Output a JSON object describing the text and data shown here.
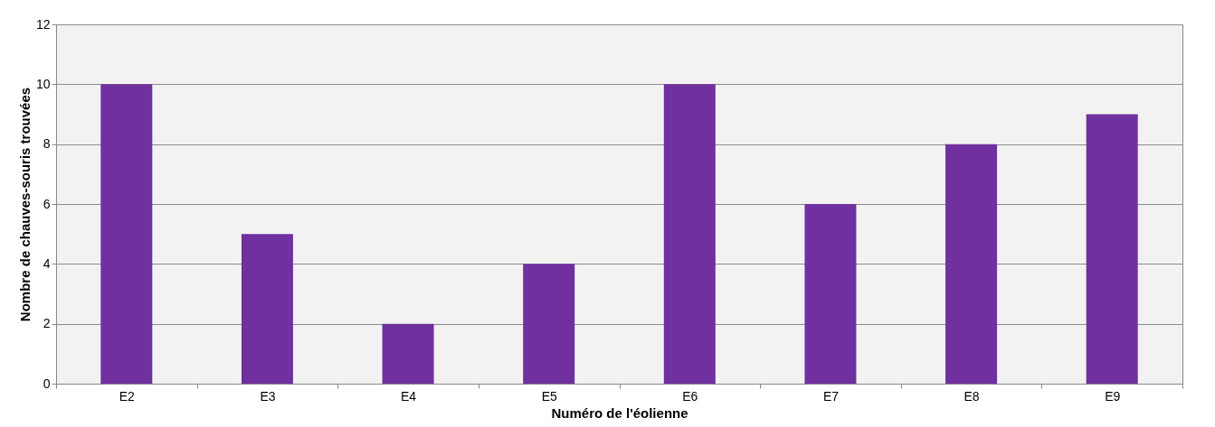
{
  "chart_data": {
    "type": "bar",
    "xlabel": "Numéro de l'éolienne",
    "ylabel": "Nombre de chauves-souris trouvées",
    "categories": [
      "E2",
      "E3",
      "E4",
      "E5",
      "E6",
      "E7",
      "E8",
      "E9"
    ],
    "values": [
      10,
      5,
      2,
      4,
      10,
      6,
      8,
      9
    ],
    "color": "#7030a0",
    "ylim": [
      0,
      12
    ],
    "yticks": [
      0,
      2,
      4,
      6,
      8,
      10,
      12
    ],
    "grid": "y"
  }
}
